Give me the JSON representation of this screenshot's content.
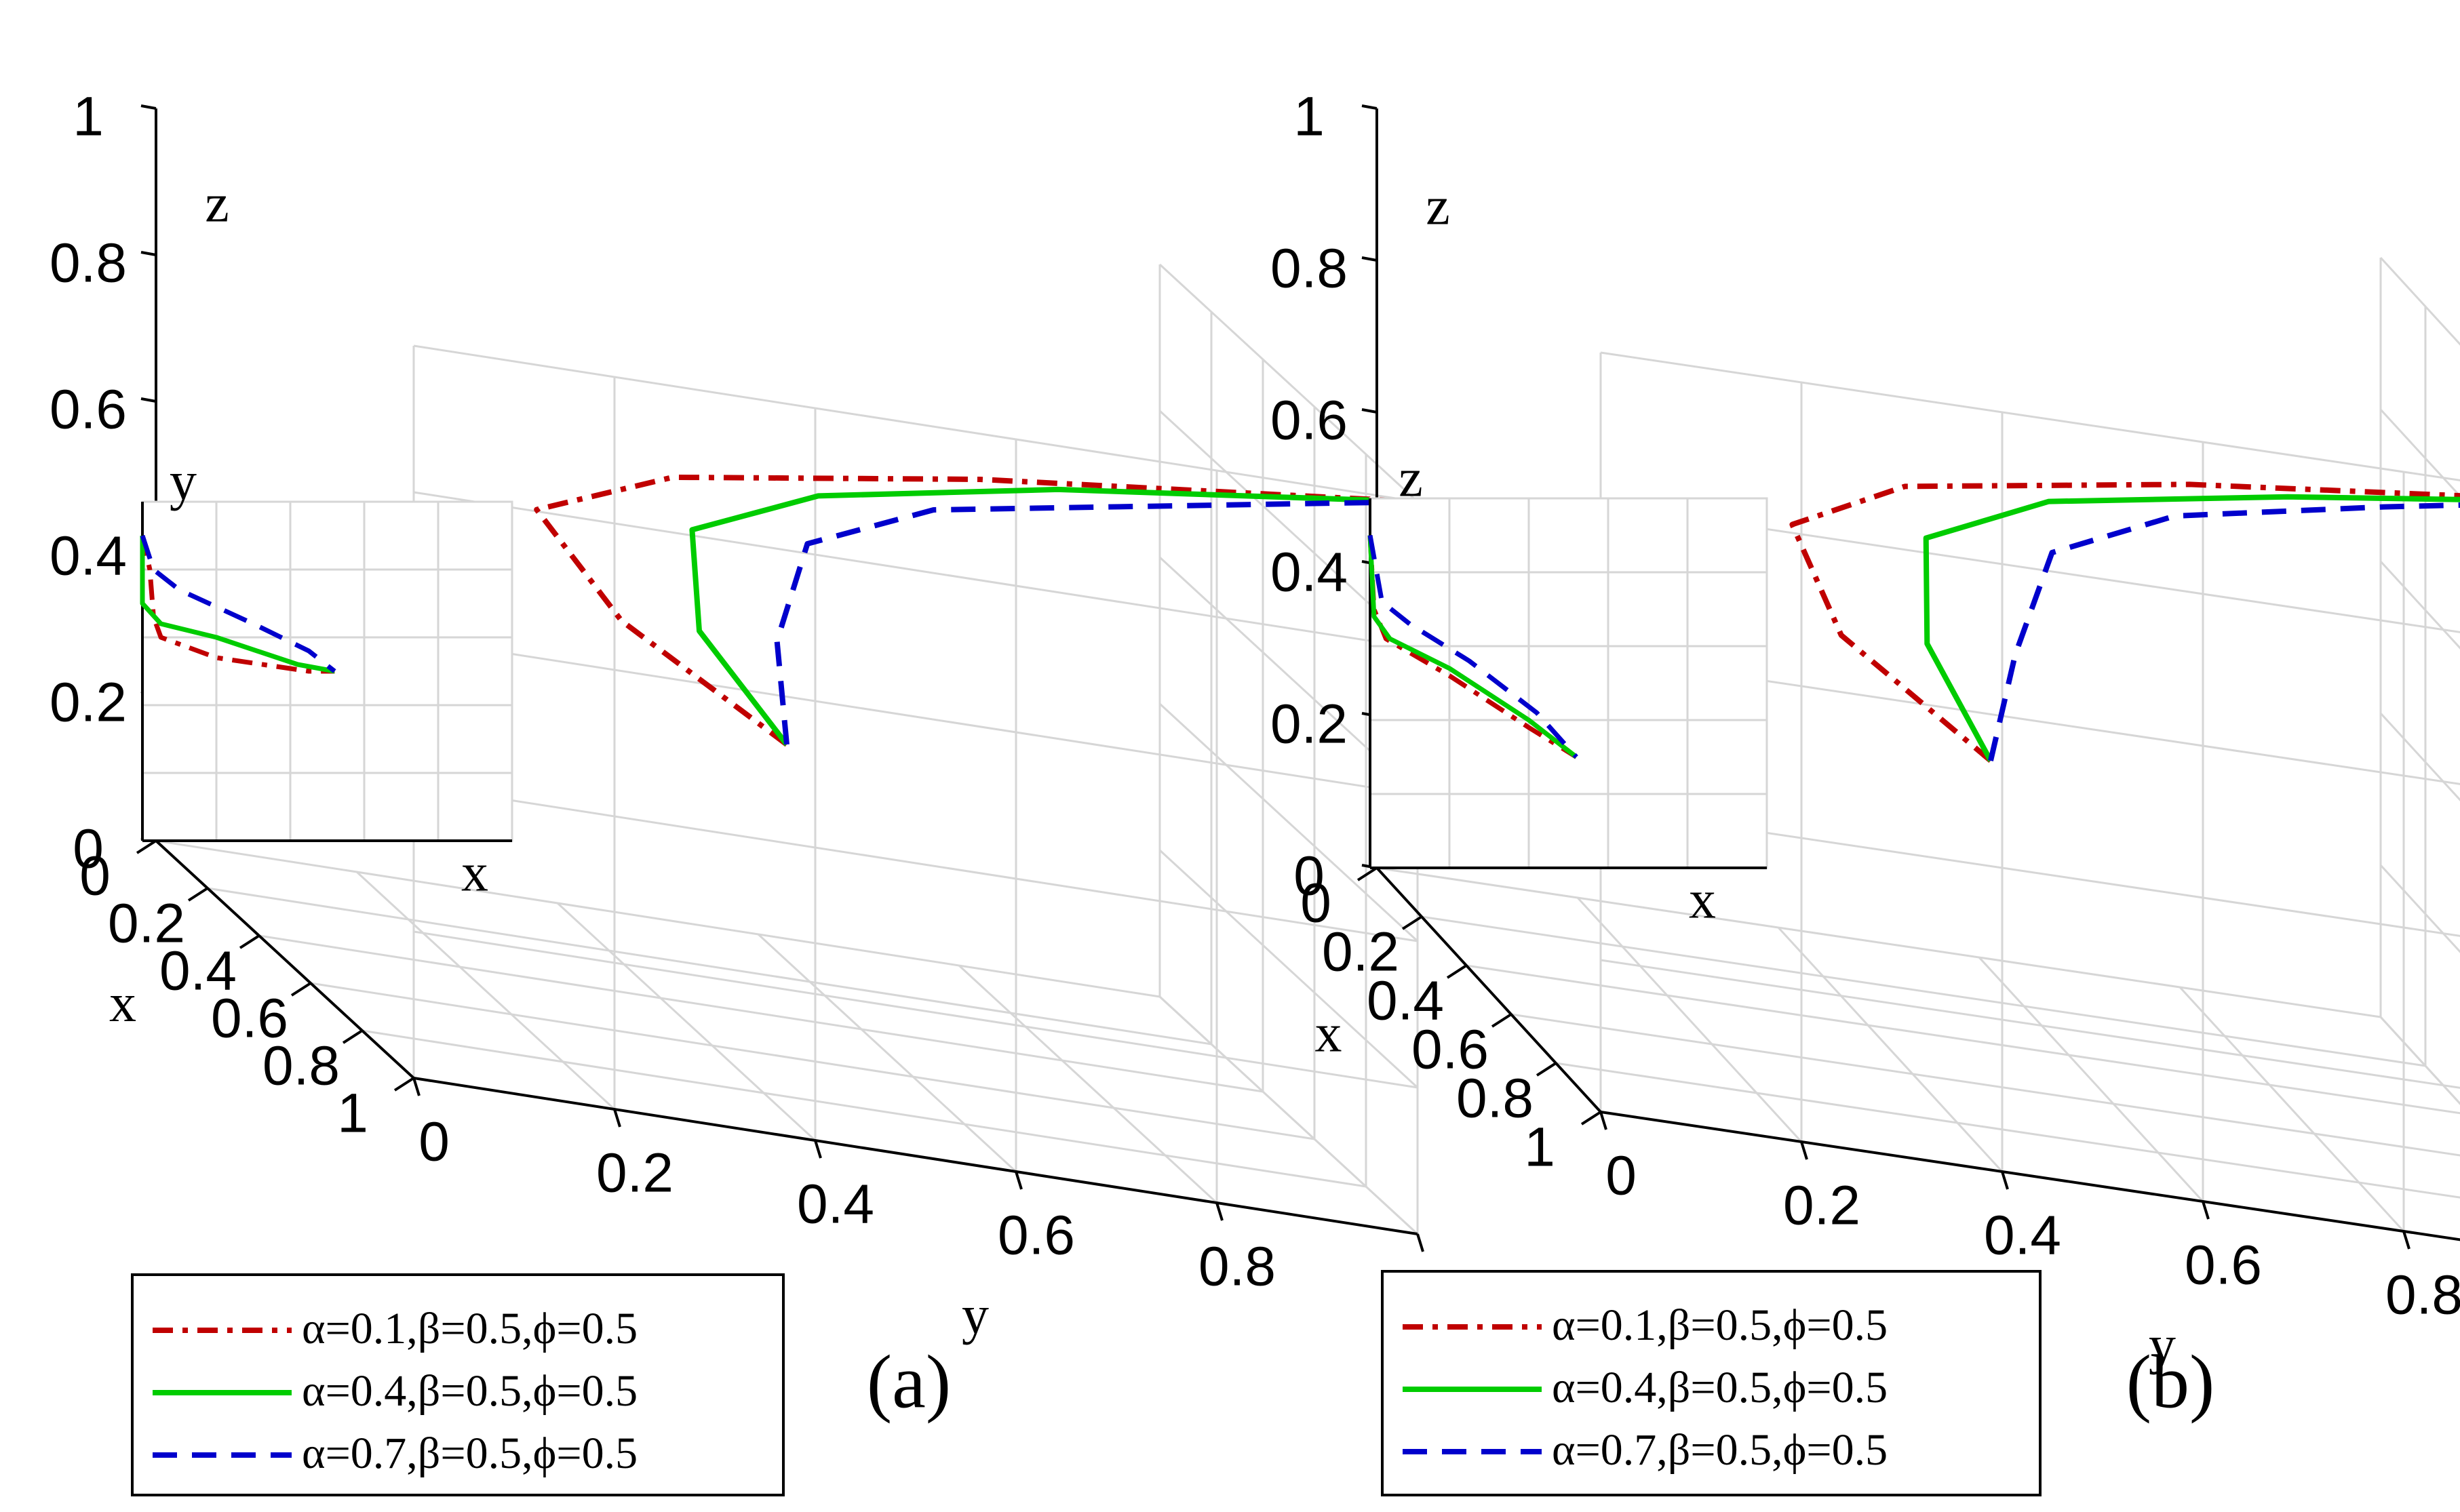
{
  "figure": {
    "colors": {
      "red": "#c00000",
      "green": "#00cc00",
      "blue": "#0000cc",
      "grid": "#d6d6d6",
      "axis": "#000000"
    }
  },
  "chart_data": [
    {
      "type": "line",
      "subtype": "3d-trajectory",
      "panel_label": "(a)",
      "axes": {
        "x": {
          "label": "x",
          "range": [
            0,
            1
          ],
          "ticks": [
            "0",
            "0.2",
            "0.4",
            "0.6",
            "0.8",
            "1"
          ]
        },
        "y": {
          "label": "y",
          "range": [
            0,
            1
          ],
          "ticks": [
            "0",
            "0.2",
            "0.4",
            "0.6",
            "0.8",
            "1"
          ]
        },
        "z": {
          "label": "z",
          "range": [
            0,
            1
          ],
          "ticks": [
            "0",
            "0.2",
            "0.4",
            "0.6",
            "0.8",
            "1"
          ]
        }
      },
      "inset": {
        "ylabel": "y",
        "xlabel": "x"
      },
      "legend_position": "bottom",
      "series": [
        {
          "name": "α=0.1,β=0.5,ϕ=0.5",
          "style": "dash-dot",
          "color": "#c00000",
          "points": [
            [
              0.5,
              0.5,
              0.4
            ],
            [
              0.56,
              0.32,
              0.55
            ],
            [
              0.62,
              0.22,
              0.7
            ],
            [
              0.72,
              0.33,
              0.8
            ],
            [
              0.86,
              0.6,
              0.9
            ],
            [
              1,
              1,
              1
            ]
          ],
          "inset_points": [
            [
              0,
              0.45
            ],
            [
              0.02,
              0.4
            ],
            [
              0.03,
              0.33
            ],
            [
              0.05,
              0.3
            ],
            [
              0.2,
              0.27
            ],
            [
              0.45,
              0.25
            ],
            [
              0.52,
              0.25
            ]
          ]
        },
        {
          "name": "α=0.4,β=0.5,ϕ=0.5",
          "style": "solid",
          "color": "#00cc00",
          "points": [
            [
              0.5,
              0.5,
              0.4
            ],
            [
              0.55,
              0.4,
              0.55
            ],
            [
              0.6,
              0.38,
              0.7
            ],
            [
              0.7,
              0.48,
              0.8
            ],
            [
              0.85,
              0.68,
              0.9
            ],
            [
              1,
              1,
              1
            ]
          ],
          "inset_points": [
            [
              0,
              0.45
            ],
            [
              0,
              0.35
            ],
            [
              0.05,
              0.32
            ],
            [
              0.2,
              0.3
            ],
            [
              0.42,
              0.26
            ],
            [
              0.52,
              0.25
            ]
          ]
        },
        {
          "name": "α=0.7,β=0.5,ϕ=0.5",
          "style": "dashed",
          "color": "#0000cc",
          "points": [
            [
              0.5,
              0.5,
              0.4
            ],
            [
              0.54,
              0.48,
              0.55
            ],
            [
              0.58,
              0.5,
              0.7
            ],
            [
              0.68,
              0.6,
              0.8
            ],
            [
              0.84,
              0.8,
              0.9
            ],
            [
              1,
              1,
              1
            ]
          ],
          "inset_points": [
            [
              0,
              0.45
            ],
            [
              0.03,
              0.4
            ],
            [
              0.1,
              0.37
            ],
            [
              0.3,
              0.32
            ],
            [
              0.45,
              0.28
            ],
            [
              0.52,
              0.25
            ]
          ]
        }
      ]
    },
    {
      "type": "line",
      "subtype": "3d-trajectory",
      "panel_label": "(b)",
      "axes": {
        "x": {
          "label": "x",
          "range": [
            0,
            1
          ],
          "ticks": [
            "0",
            "0.2",
            "0.4",
            "0.6",
            "0.8",
            "1"
          ]
        },
        "y": {
          "label": "y",
          "range": [
            0,
            1
          ],
          "ticks": [
            "0",
            "0.2",
            "0.4",
            "0.6",
            "0.8",
            "1"
          ]
        },
        "z": {
          "label": "z",
          "range": [
            0,
            1
          ],
          "ticks": [
            "0",
            "0.2",
            "0.4",
            "0.6",
            "0.8",
            "1"
          ]
        }
      },
      "inset": {
        "ylabel": "z",
        "xlabel": "x"
      },
      "legend_position": "bottom",
      "series": [
        {
          "name": "α=0.1,β=0.5,ϕ=0.5",
          "style": "dash-dot",
          "color": "#c00000",
          "points": [
            [
              0.5,
              0.5,
              0.4
            ],
            [
              0.55,
              0.34,
              0.55
            ],
            [
              0.6,
              0.28,
              0.7
            ],
            [
              0.7,
              0.37,
              0.8
            ],
            [
              0.85,
              0.62,
              0.9
            ],
            [
              1,
              1,
              1
            ]
          ],
          "inset_points": [
            [
              0,
              0.45
            ],
            [
              0.01,
              0.35
            ],
            [
              0.04,
              0.31
            ],
            [
              0.2,
              0.26
            ],
            [
              0.4,
              0.19
            ],
            [
              0.52,
              0.15
            ]
          ]
        },
        {
          "name": "α=0.4,β=0.5,ϕ=0.5",
          "style": "solid",
          "color": "#00cc00",
          "points": [
            [
              0.5,
              0.5,
              0.4
            ],
            [
              0.53,
              0.43,
              0.55
            ],
            [
              0.57,
              0.42,
              0.7
            ],
            [
              0.67,
              0.52,
              0.8
            ],
            [
              0.84,
              0.72,
              0.9
            ],
            [
              1,
              1,
              1
            ]
          ],
          "inset_points": [
            [
              0,
              0.45
            ],
            [
              0.01,
              0.34
            ],
            [
              0.05,
              0.31
            ],
            [
              0.2,
              0.27
            ],
            [
              0.4,
              0.2
            ],
            [
              0.52,
              0.15
            ]
          ]
        },
        {
          "name": "α=0.7,β=0.5,ϕ=0.5",
          "style": "dashed",
          "color": "#0000cc",
          "points": [
            [
              0.5,
              0.5,
              0.4
            ],
            [
              0.52,
              0.52,
              0.55
            ],
            [
              0.55,
              0.55,
              0.7
            ],
            [
              0.65,
              0.65,
              0.8
            ],
            [
              0.82,
              0.82,
              0.9
            ],
            [
              1,
              1,
              1
            ]
          ],
          "inset_points": [
            [
              0,
              0.45
            ],
            [
              0.03,
              0.36
            ],
            [
              0.1,
              0.33
            ],
            [
              0.25,
              0.28
            ],
            [
              0.42,
              0.21
            ],
            [
              0.52,
              0.15
            ]
          ]
        }
      ]
    }
  ]
}
